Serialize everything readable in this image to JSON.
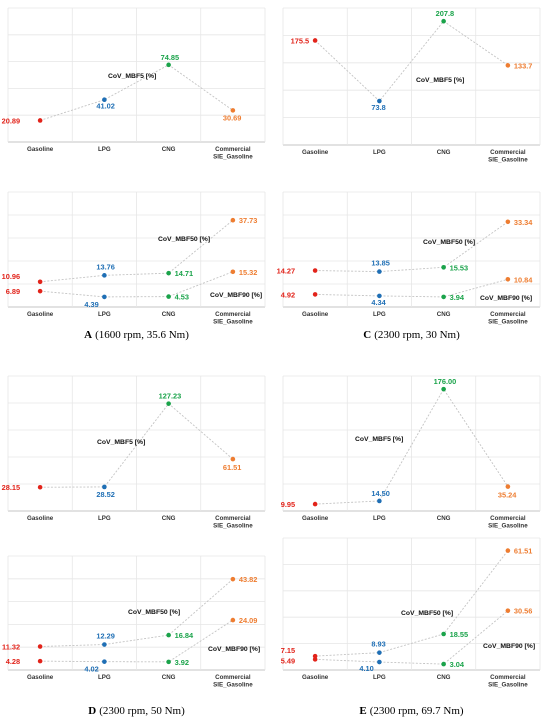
{
  "colors": {
    "Gasoline": "#e2231a",
    "LPG": "#1f6fb5",
    "CNG": "#1aa34a",
    "Commercial SIE_Gasoline": "#ee7d31"
  },
  "chart_data": [
    {
      "id": "A",
      "caption": {
        "letter": "A",
        "text": "(1600 rpm, 35.6 Nm)"
      },
      "type": "line",
      "categories": [
        "Gasoline",
        "LPG",
        "CNG",
        "Commercial SIE_Gasoline"
      ],
      "top": {
        "ylim": [
          0,
          130
        ],
        "annotation": "CoV_MBF5 [%]",
        "series": [
          {
            "name": "CoV_MBF5 [%]",
            "values": [
              20.89,
              41.02,
              74.85,
              30.69
            ],
            "labels": [
              "20.89",
              "41.02",
              "74.85",
              "30.69"
            ]
          }
        ]
      },
      "bottom": {
        "ylim": [
          0,
          50
        ],
        "annotations": [
          "CoV_MBF50 [%]",
          "CoV_MBF90 [%]"
        ],
        "series": [
          {
            "name": "CoV_MBF50 [%]",
            "values": [
              10.96,
              13.76,
              14.71,
              37.73
            ],
            "labels": [
              "10.96",
              "13.76",
              "14.71",
              "37.73"
            ]
          },
          {
            "name": "CoV_MBF90 [%]",
            "values": [
              6.89,
              4.39,
              4.53,
              15.32
            ],
            "labels": [
              "6.89",
              "4.39",
              "4.53",
              "15.32"
            ]
          }
        ]
      }
    },
    {
      "id": "C",
      "caption": {
        "letter": "C",
        "text": "(2300 rpm, 30 Nm)"
      },
      "type": "line",
      "categories": [
        "Gasoline",
        "LPG",
        "CNG",
        "Commercial SIE_Gasoline"
      ],
      "top": {
        "ylim": [
          0,
          230
        ],
        "annotation": "CoV_MBF5 [%]",
        "series": [
          {
            "name": "CoV_MBF5 [%]",
            "values": [
              175.5,
              73.8,
              207.8,
              133.7
            ],
            "labels": [
              "175.5",
              "73.8",
              "207.8",
              "133.7"
            ]
          }
        ]
      },
      "bottom": {
        "ylim": [
          0,
          45
        ],
        "annotations": [
          "CoV_MBF50 [%]",
          "CoV_MBF90 [%]"
        ],
        "series": [
          {
            "name": "CoV_MBF50 [%]",
            "values": [
              14.27,
              13.85,
              15.53,
              33.34
            ],
            "labels": [
              "14.27",
              "13.85",
              "15.53",
              "33.34"
            ]
          },
          {
            "name": "CoV_MBF90 [%]",
            "values": [
              4.92,
              4.34,
              3.94,
              10.84
            ],
            "labels": [
              "4.92",
              "4.34",
              "3.94",
              "10.84"
            ]
          }
        ]
      }
    },
    {
      "id": "D",
      "caption": {
        "letter": "D",
        "text": "(2300 rpm, 50 Nm)"
      },
      "type": "line",
      "categories": [
        "Gasoline",
        "LPG",
        "CNG",
        "Commercial SIE_Gasoline"
      ],
      "top": {
        "ylim": [
          0,
          160
        ],
        "annotation": "CoV_MBF5 [%]",
        "series": [
          {
            "name": "CoV_MBF5 [%]",
            "values": [
              28.15,
              28.52,
              127.23,
              61.51
            ],
            "labels": [
              "28.15",
              "28.52",
              "127.23",
              "61.51"
            ]
          }
        ]
      },
      "bottom": {
        "ylim": [
          0,
          55
        ],
        "annotations": [
          "CoV_MBF50 [%]",
          "CoV_MBF90 [%]"
        ],
        "series": [
          {
            "name": "CoV_MBF50 [%]",
            "values": [
              11.32,
              12.29,
              16.84,
              43.82
            ],
            "labels": [
              "11.32",
              "12.29",
              "16.84",
              "43.82"
            ]
          },
          {
            "name": "CoV_MBF90 [%]",
            "values": [
              4.28,
              4.02,
              3.92,
              24.09
            ],
            "labels": [
              "4.28",
              "4.02",
              "3.92",
              "24.09"
            ]
          }
        ]
      }
    },
    {
      "id": "E",
      "caption": {
        "letter": "E",
        "text": "(2300 rpm, 69.7 Nm)"
      },
      "type": "line",
      "categories": [
        "Gasoline",
        "LPG",
        "CNG",
        "Commercial SIE_Gasoline"
      ],
      "top": {
        "ylim": [
          0,
          195
        ],
        "annotation": "CoV_MBF5 [%]",
        "series": [
          {
            "name": "CoV_MBF5 [%]",
            "values": [
              9.95,
              14.5,
              176.0,
              35.24
            ],
            "labels": [
              "9.95",
              "14.50",
              "176.00",
              "35.24"
            ]
          }
        ]
      },
      "bottom": {
        "ylim": [
          0,
          68
        ],
        "annotations": [
          "CoV_MBF50 [%]",
          "CoV_MBF90 [%]"
        ],
        "series": [
          {
            "name": "CoV_MBF50 [%]",
            "values": [
              7.15,
              8.93,
              18.55,
              61.51
            ],
            "labels": [
              "7.15",
              "8.93",
              "18.55",
              "61.51"
            ]
          },
          {
            "name": "CoV_MBF90 [%]",
            "values": [
              5.49,
              4.1,
              3.04,
              30.56
            ],
            "labels": [
              "5.49",
              "4.10",
              "3.04",
              "30.56"
            ]
          }
        ]
      }
    }
  ]
}
